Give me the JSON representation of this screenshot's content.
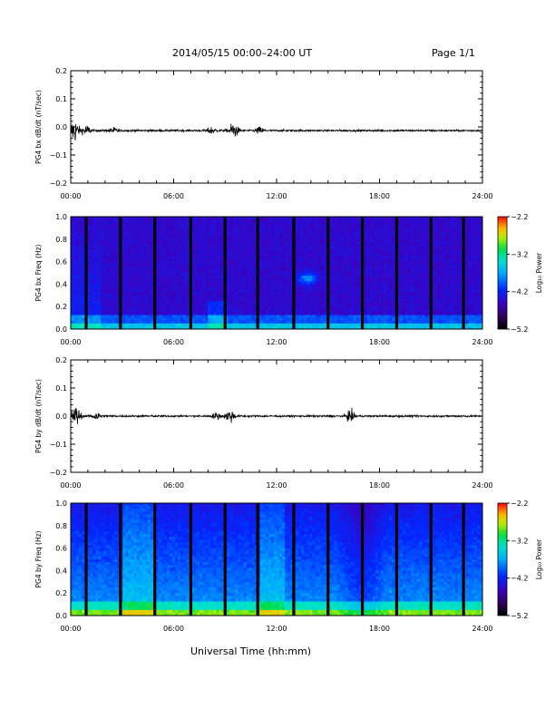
{
  "header": {
    "title": "2014/05/15  00:00–24:00 UT",
    "page": "Page 1/1"
  },
  "x_axis_title": "Universal Time (hh:mm)",
  "chart_data": [
    {
      "type": "line",
      "id": "bx_dbdt",
      "ylabel": "PG4 bx dB/dt (nT/sec)",
      "xlim": [
        0,
        24
      ],
      "ylim": [
        -0.2,
        0.2
      ],
      "x_ticks": [
        "00:00",
        "06:00",
        "12:00",
        "18:00",
        "24:00"
      ],
      "y_ticks": [
        "0.2",
        "0.1",
        "0.0",
        "−0.1",
        "−0.2"
      ],
      "series": [
        {
          "baseline": -0.013,
          "bursts": [
            {
              "t": 0.2,
              "amp": 0.045
            },
            {
              "t": 0.9,
              "amp": 0.02
            },
            {
              "t": 2.5,
              "amp": 0.01
            },
            {
              "t": 8.2,
              "amp": 0.012
            },
            {
              "t": 9.5,
              "amp": 0.03
            },
            {
              "t": 11.0,
              "amp": 0.012
            }
          ]
        }
      ]
    },
    {
      "type": "heatmap",
      "id": "bx_freq",
      "ylabel": "PG4 bx Freq (Hz)",
      "xlim": [
        0,
        24
      ],
      "ylim": [
        0,
        1.0
      ],
      "x_ticks": [
        "00:00",
        "06:00",
        "12:00",
        "18:00",
        "24:00"
      ],
      "y_ticks": [
        "1.0",
        "0.8",
        "0.6",
        "0.4",
        "0.2",
        "0.0"
      ],
      "colorbar": {
        "label": "Log₁₀ Power",
        "ticks": [
          "−2.2",
          "−3.2",
          "−4.2",
          "−5.2"
        ],
        "range": [
          -5.2,
          -2.2
        ]
      },
      "gaps_hours": [
        0.9,
        2.9,
        4.9,
        7.0,
        9.0,
        10.9,
        13.0,
        15.0,
        17.0,
        19.0,
        21.0,
        22.9
      ],
      "low_freq_enhancement": 0.07,
      "features": [
        {
          "t": 13.8,
          "f": 0.45,
          "note": "bright streak"
        }
      ]
    },
    {
      "type": "line",
      "id": "by_dbdt",
      "ylabel": "PG4 by dB/dt (nT/sec)",
      "xlim": [
        0,
        24
      ],
      "ylim": [
        -0.2,
        0.2
      ],
      "x_ticks": [
        "00:00",
        "06:00",
        "12:00",
        "18:00",
        "24:00"
      ],
      "y_ticks": [
        "0.2",
        "0.1",
        "0.0",
        "−0.1",
        "−0.2"
      ],
      "series": [
        {
          "baseline": 0.0,
          "bursts": [
            {
              "t": 0.3,
              "amp": 0.04
            },
            {
              "t": 1.5,
              "amp": 0.015
            },
            {
              "t": 8.5,
              "amp": 0.012
            },
            {
              "t": 9.3,
              "amp": 0.025
            },
            {
              "t": 16.3,
              "amp": 0.02
            }
          ]
        }
      ]
    },
    {
      "type": "heatmap",
      "id": "by_freq",
      "ylabel": "PG4 by Freq (Hz)",
      "xlim": [
        0,
        24
      ],
      "ylim": [
        0,
        1.0
      ],
      "x_ticks": [
        "00:00",
        "06:00",
        "12:00",
        "18:00",
        "24:00"
      ],
      "y_ticks": [
        "1.0",
        "0.8",
        "0.6",
        "0.4",
        "0.2",
        "0.0"
      ],
      "colorbar": {
        "label": "Log₁₀ Power",
        "ticks": [
          "−2.2",
          "−3.2",
          "−4.2",
          "−5.2"
        ],
        "range": [
          -5.2,
          -2.2
        ]
      },
      "gaps_hours": [
        0.9,
        2.9,
        4.9,
        7.0,
        9.0,
        10.9,
        13.0,
        15.0,
        17.0,
        19.0,
        21.0,
        22.9
      ],
      "low_freq_enhancement": 0.2,
      "features": []
    }
  ]
}
